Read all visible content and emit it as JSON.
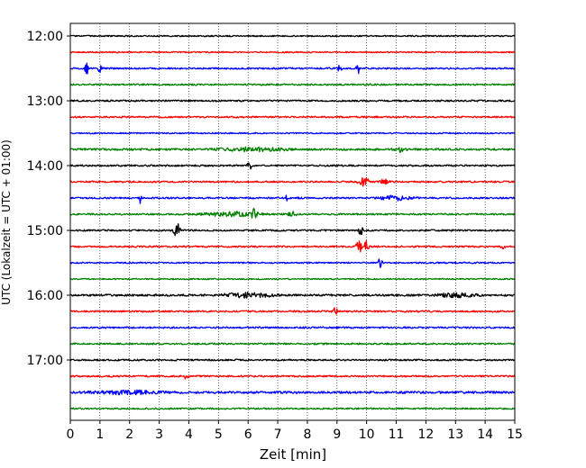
{
  "chart_data": {
    "type": "line",
    "title": "",
    "xlabel": "Zeit  [min]",
    "ylabel": "UTC (Lokalzeit = UTC + 01:00)",
    "xlim": [
      0,
      15
    ],
    "x_ticks": [
      0,
      1,
      2,
      3,
      4,
      5,
      6,
      7,
      8,
      9,
      10,
      11,
      12,
      13,
      14,
      15
    ],
    "y_ticks": [
      "12:00",
      "13:00",
      "14:00",
      "15:00",
      "16:00",
      "17:00"
    ],
    "trace_offset_rows": 24,
    "trace_interval_min": 15,
    "start_time": "12:00",
    "colors_cycle": [
      "#000000",
      "#ff0000",
      "#0000ff",
      "#008000"
    ],
    "grid": "vertical dotted at each minute",
    "traces": [
      {
        "start": "12:00",
        "color": "#000000",
        "noise": 0.35,
        "events": []
      },
      {
        "start": "12:15",
        "color": "#ff0000",
        "noise": 0.35,
        "events": []
      },
      {
        "start": "12:30",
        "color": "#0000ff",
        "noise": 0.45,
        "events": [
          {
            "t": 0.55,
            "amp": 8.0,
            "dur": 0.08
          },
          {
            "t": 1.0,
            "amp": 7.5,
            "dur": 0.08
          },
          {
            "t": 9.1,
            "amp": 7.5,
            "dur": 0.08
          },
          {
            "t": 9.7,
            "amp": 8.5,
            "dur": 0.08
          }
        ]
      },
      {
        "start": "12:45",
        "color": "#008000",
        "noise": 0.45,
        "events": []
      },
      {
        "start": "13:00",
        "color": "#000000",
        "noise": 0.45,
        "events": []
      },
      {
        "start": "13:15",
        "color": "#ff0000",
        "noise": 0.45,
        "events": []
      },
      {
        "start": "13:30",
        "color": "#0000ff",
        "noise": 0.35,
        "events": []
      },
      {
        "start": "13:45",
        "color": "#008000",
        "noise": 0.55,
        "events": [
          {
            "t": 6.1,
            "amp": 2.0,
            "dur": 1.6
          },
          {
            "t": 11.1,
            "amp": 2.5,
            "dur": 0.3
          }
        ]
      },
      {
        "start": "14:00",
        "color": "#000000",
        "noise": 0.45,
        "events": [
          {
            "t": 6.05,
            "amp": 8.0,
            "dur": 0.1
          }
        ]
      },
      {
        "start": "14:15",
        "color": "#ff0000",
        "noise": 0.45,
        "events": [
          {
            "t": 9.9,
            "amp": 5.5,
            "dur": 0.25
          },
          {
            "t": 10.6,
            "amp": 3.0,
            "dur": 0.2
          }
        ]
      },
      {
        "start": "14:30",
        "color": "#0000ff",
        "noise": 0.45,
        "events": [
          {
            "t": 2.35,
            "amp": 6.5,
            "dur": 0.06
          },
          {
            "t": 7.3,
            "amp": 3.0,
            "dur": 0.08
          },
          {
            "t": 11.0,
            "amp": 2.5,
            "dur": 0.8
          }
        ]
      },
      {
        "start": "14:45",
        "color": "#008000",
        "noise": 0.45,
        "events": [
          {
            "t": 5.5,
            "amp": 2.5,
            "dur": 1.4
          },
          {
            "t": 6.2,
            "amp": 5.0,
            "dur": 0.15
          },
          {
            "t": 7.5,
            "amp": 3.0,
            "dur": 0.2
          }
        ]
      },
      {
        "start": "15:00",
        "color": "#000000",
        "noise": 0.45,
        "events": [
          {
            "t": 3.6,
            "amp": 11.0,
            "dur": 0.15
          },
          {
            "t": 9.8,
            "amp": 6.0,
            "dur": 0.1
          }
        ]
      },
      {
        "start": "15:15",
        "color": "#ff0000",
        "noise": 0.45,
        "events": [
          {
            "t": 9.75,
            "amp": 7.0,
            "dur": 0.15
          },
          {
            "t": 10.0,
            "amp": 11.0,
            "dur": 0.1
          },
          {
            "t": 14.6,
            "amp": 3.0,
            "dur": 0.1
          }
        ]
      },
      {
        "start": "15:30",
        "color": "#0000ff",
        "noise": 0.4,
        "events": [
          {
            "t": 10.45,
            "amp": 5.5,
            "dur": 0.1
          }
        ]
      },
      {
        "start": "15:45",
        "color": "#008000",
        "noise": 0.35,
        "events": []
      },
      {
        "start": "16:00",
        "color": "#000000",
        "noise": 0.55,
        "events": [
          {
            "t": 6.0,
            "amp": 2.5,
            "dur": 1.2
          },
          {
            "t": 13.0,
            "amp": 2.0,
            "dur": 1.0
          }
        ]
      },
      {
        "start": "16:15",
        "color": "#ff0000",
        "noise": 0.45,
        "events": [
          {
            "t": 8.95,
            "amp": 6.5,
            "dur": 0.1
          }
        ]
      },
      {
        "start": "16:30",
        "color": "#0000ff",
        "noise": 0.45,
        "events": []
      },
      {
        "start": "16:45",
        "color": "#008000",
        "noise": 0.45,
        "events": []
      },
      {
        "start": "17:00",
        "color": "#000000",
        "noise": 0.45,
        "events": []
      },
      {
        "start": "17:15",
        "color": "#ff0000",
        "noise": 0.45,
        "events": [
          {
            "t": 3.9,
            "amp": 3.5,
            "dur": 0.1
          }
        ]
      },
      {
        "start": "17:30",
        "color": "#0000ff",
        "noise": 0.6,
        "events": [
          {
            "t": 1.9,
            "amp": 2.0,
            "dur": 1.6
          }
        ]
      },
      {
        "start": "17:45",
        "color": "#008000",
        "noise": 0.4,
        "events": []
      }
    ]
  }
}
